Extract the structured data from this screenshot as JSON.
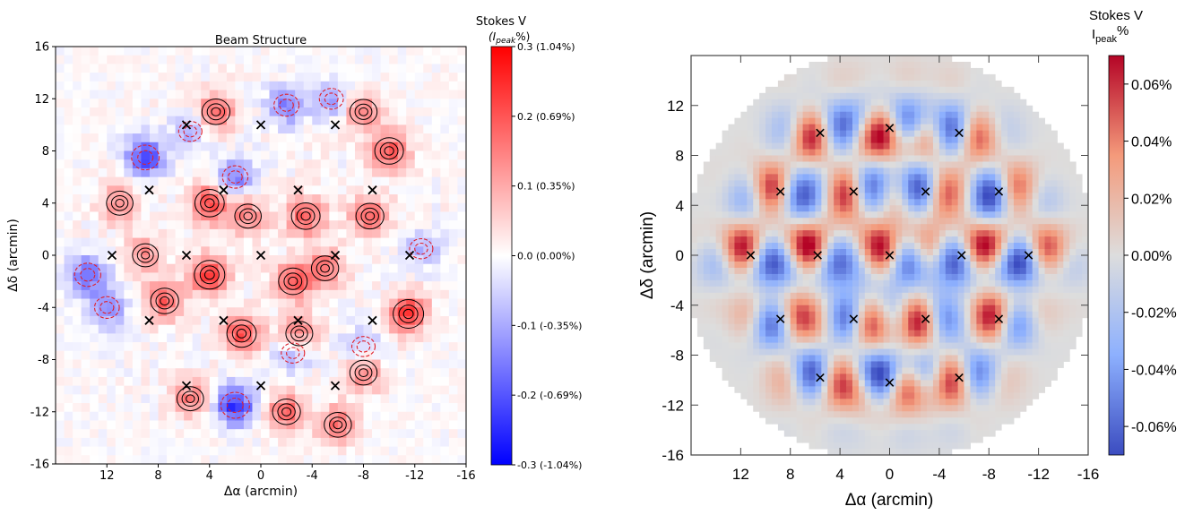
{
  "chart_data": [
    {
      "type": "heatmap",
      "title": "Beam Structure",
      "xlabel": "Δα (arcmin)",
      "ylabel": "Δδ (arcmin)",
      "xlim": [
        16,
        -16
      ],
      "ylim": [
        -16,
        16
      ],
      "x_ticks": [
        "12",
        "8",
        "4",
        "0",
        "-4",
        "-8",
        "-12",
        "-16"
      ],
      "x_tick_values": [
        12,
        8,
        4,
        0,
        -4,
        -8,
        -12,
        -16
      ],
      "y_ticks": [
        "16",
        "12",
        "8",
        "4",
        "0",
        "-4",
        "-8",
        "-12",
        "-16"
      ],
      "y_tick_values": [
        16,
        12,
        8,
        4,
        0,
        -4,
        -8,
        -12,
        -16
      ],
      "colorbar": {
        "title_line1": "Stokes V",
        "title_line2": "(I",
        "title_sub": "peak",
        "title_tail": "%)",
        "range": [
          -0.3,
          0.3
        ],
        "ticks": [
          {
            "value": 0.3,
            "label": "0.3 (1.04%)"
          },
          {
            "value": 0.2,
            "label": "0.2 (0.69%)"
          },
          {
            "value": 0.1,
            "label": "0.1 (0.35%)"
          },
          {
            "value": 0.0,
            "label": "0.0 (0.00%)"
          },
          {
            "value": -0.1,
            "label": "-0.1 (-0.35%)"
          },
          {
            "value": -0.2,
            "label": "-0.2 (-0.69%)"
          },
          {
            "value": -0.3,
            "label": "-0.3 (-1.04%)"
          }
        ],
        "colors": [
          "#0000ff",
          "#ffffff",
          "#ff0000"
        ]
      },
      "pointing_centers": [
        [
          0,
          0
        ],
        [
          5.8,
          0
        ],
        [
          -5.8,
          0
        ],
        [
          11.6,
          0
        ],
        [
          -11.6,
          0
        ],
        [
          0,
          10
        ],
        [
          5.8,
          10
        ],
        [
          -5.8,
          10
        ],
        [
          0,
          -10
        ],
        [
          5.8,
          -10
        ],
        [
          -5.8,
          -10
        ],
        [
          2.9,
          5
        ],
        [
          -2.9,
          5
        ],
        [
          8.7,
          5
        ],
        [
          -8.7,
          5
        ],
        [
          2.9,
          -5
        ],
        [
          -2.9,
          -5
        ],
        [
          8.7,
          -5
        ],
        [
          -8.7,
          -5
        ]
      ],
      "positive_regions": [
        {
          "x": 3.5,
          "y": 11,
          "v": 0.18
        },
        {
          "x": -8,
          "y": 11,
          "v": 0.16
        },
        {
          "x": -10,
          "y": 8,
          "v": 0.2
        },
        {
          "x": 11,
          "y": 4,
          "v": 0.14
        },
        {
          "x": 4,
          "y": 4,
          "v": 0.22
        },
        {
          "x": -3.5,
          "y": 3,
          "v": 0.2
        },
        {
          "x": -8.5,
          "y": 3,
          "v": 0.18
        },
        {
          "x": 9,
          "y": 0,
          "v": 0.12
        },
        {
          "x": 4,
          "y": -1.5,
          "v": 0.25
        },
        {
          "x": -2.5,
          "y": -2,
          "v": 0.2
        },
        {
          "x": -11.5,
          "y": -4.5,
          "v": 0.25
        },
        {
          "x": 7.5,
          "y": -3.5,
          "v": 0.18
        },
        {
          "x": 1.5,
          "y": -6,
          "v": 0.22
        },
        {
          "x": -3,
          "y": -6,
          "v": 0.15
        },
        {
          "x": -8,
          "y": -9,
          "v": 0.16
        },
        {
          "x": 5.5,
          "y": -11,
          "v": 0.14
        },
        {
          "x": -2,
          "y": -12,
          "v": 0.18
        },
        {
          "x": -6,
          "y": -13,
          "v": 0.16
        },
        {
          "x": 1,
          "y": 3,
          "v": 0.14
        },
        {
          "x": -5,
          "y": -1,
          "v": 0.16
        }
      ],
      "negative_regions": [
        {
          "x": 9,
          "y": 7.5,
          "v": -0.22
        },
        {
          "x": -2,
          "y": 11.5,
          "v": -0.15
        },
        {
          "x": -5.5,
          "y": 12,
          "v": -0.12
        },
        {
          "x": 2,
          "y": 6,
          "v": -0.16
        },
        {
          "x": 13.5,
          "y": -1.5,
          "v": -0.18
        },
        {
          "x": 12,
          "y": -4,
          "v": -0.14
        },
        {
          "x": 2,
          "y": -11.5,
          "v": -0.25
        },
        {
          "x": -12.5,
          "y": 0.5,
          "v": -0.1
        },
        {
          "x": -8,
          "y": -7,
          "v": -0.1
        },
        {
          "x": 5.5,
          "y": 9.5,
          "v": -0.1
        },
        {
          "x": -2.5,
          "y": -7.5,
          "v": -0.1
        }
      ]
    },
    {
      "type": "heatmap",
      "xlabel": "Δα (arcmin)",
      "ylabel": "Δδ (arcmin)",
      "xlim": [
        16,
        -16
      ],
      "ylim": [
        -16,
        16
      ],
      "x_ticks": [
        "12",
        "8",
        "4",
        "0",
        "-4",
        "-8",
        "-12",
        "-16"
      ],
      "x_tick_values": [
        12,
        8,
        4,
        0,
        -4,
        -8,
        -12,
        -16
      ],
      "y_ticks": [
        "12",
        "8",
        "4",
        "0",
        "-4",
        "-8",
        "-12",
        "-16"
      ],
      "y_tick_values": [
        12,
        8,
        4,
        0,
        -4,
        -8,
        -12,
        -16
      ],
      "disk_radius": 16.5,
      "background_color": "#dcdcdc",
      "colorbar": {
        "title_line1": "Stokes V",
        "title_line2": "I",
        "title_sub": "peak",
        "title_tail": "%",
        "range": [
          -0.07,
          0.07
        ],
        "ticks": [
          {
            "value": 0.06,
            "label": "0.06%"
          },
          {
            "value": 0.04,
            "label": "0.04%"
          },
          {
            "value": 0.02,
            "label": "0.02%"
          },
          {
            "value": 0.0,
            "label": "0.00%"
          },
          {
            "value": -0.02,
            "label": "-0.02%"
          },
          {
            "value": -0.04,
            "label": "-0.04%"
          },
          {
            "value": -0.06,
            "label": "-0.06%"
          }
        ],
        "colors": [
          "#3b4cc0",
          "#8db0fe",
          "#dddddd",
          "#f49a7b",
          "#b40426"
        ]
      },
      "pointing_centers": [
        [
          0,
          0
        ],
        [
          5.8,
          0
        ],
        [
          -5.8,
          0
        ],
        [
          11.2,
          0
        ],
        [
          -11.2,
          0
        ],
        [
          0,
          10.2
        ],
        [
          5.6,
          9.8
        ],
        [
          -5.6,
          9.8
        ],
        [
          0,
          -10.2
        ],
        [
          5.6,
          -9.8
        ],
        [
          -5.6,
          -9.8
        ],
        [
          2.9,
          5.1
        ],
        [
          -2.9,
          5.1
        ],
        [
          8.8,
          5.1
        ],
        [
          -8.8,
          5.1
        ],
        [
          2.9,
          -5.1
        ],
        [
          -2.9,
          -5.1
        ],
        [
          8.8,
          -5.1
        ],
        [
          -8.8,
          -5.1
        ]
      ]
    }
  ]
}
